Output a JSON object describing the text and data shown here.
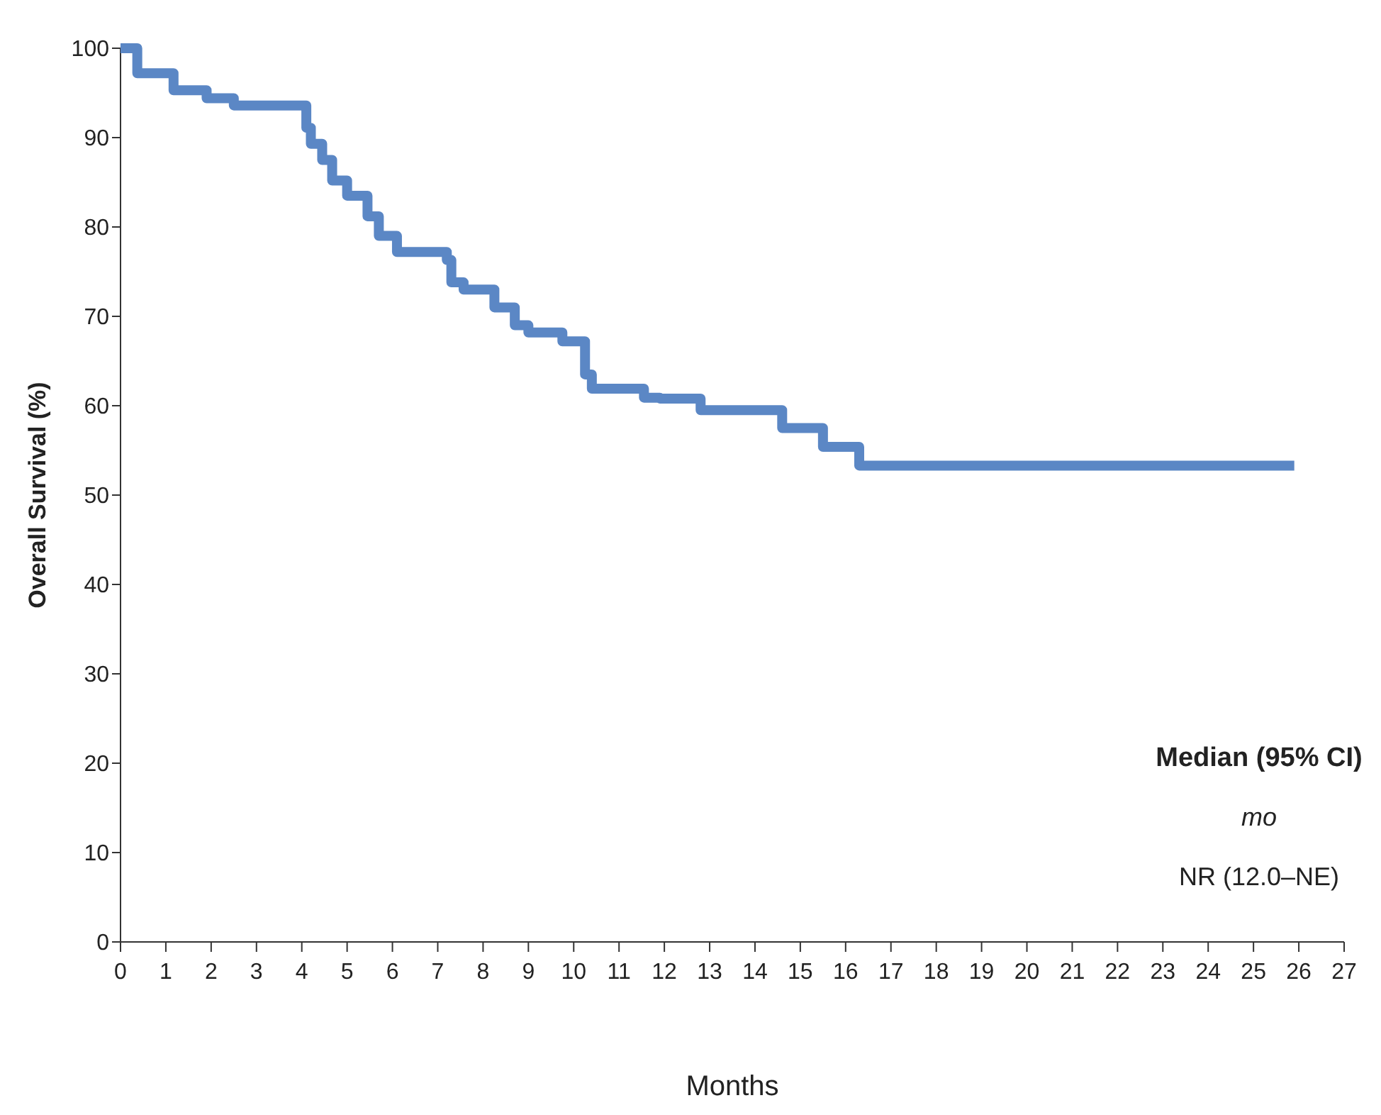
{
  "chart_data": {
    "type": "step",
    "xlabel": "Months",
    "ylabel": "Overall Survival (%)",
    "xlim": [
      0,
      27
    ],
    "xticks": [
      0,
      1,
      2,
      3,
      4,
      5,
      6,
      7,
      8,
      9,
      10,
      11,
      12,
      13,
      14,
      15,
      16,
      17,
      18,
      19,
      20,
      21,
      22,
      23,
      24,
      25,
      26,
      27
    ],
    "ylim": [
      0,
      100
    ],
    "yticks": [
      0,
      10,
      20,
      30,
      40,
      50,
      60,
      70,
      80,
      90,
      100
    ],
    "series": [
      {
        "color": "#5b87c5",
        "x": [
          0,
          0.37,
          1.17,
          1.9,
          2.5,
          3.6,
          4.1,
          4.2,
          4.45,
          4.67,
          5.0,
          5.45,
          5.7,
          6.1,
          7.2,
          7.3,
          7.57,
          8.25,
          8.7,
          9.0,
          9.75,
          10.25,
          10.4,
          10.8,
          11.55,
          11.9,
          12.8,
          14.6,
          15.5,
          16.3,
          25.9
        ],
        "values": [
          100,
          97.2,
          95.3,
          94.4,
          93.6,
          93.6,
          91.1,
          89.3,
          87.5,
          85.2,
          83.5,
          81.2,
          79.0,
          77.2,
          76.3,
          73.8,
          73.0,
          71.0,
          69.0,
          68.2,
          67.2,
          63.5,
          61.9,
          61.9,
          60.9,
          60.8,
          59.5,
          57.5,
          55.4,
          53.3,
          53.3
        ]
      }
    ],
    "annotations": [
      "Median (95% CI)",
      "mo",
      "NR (12.0–NE)"
    ]
  }
}
